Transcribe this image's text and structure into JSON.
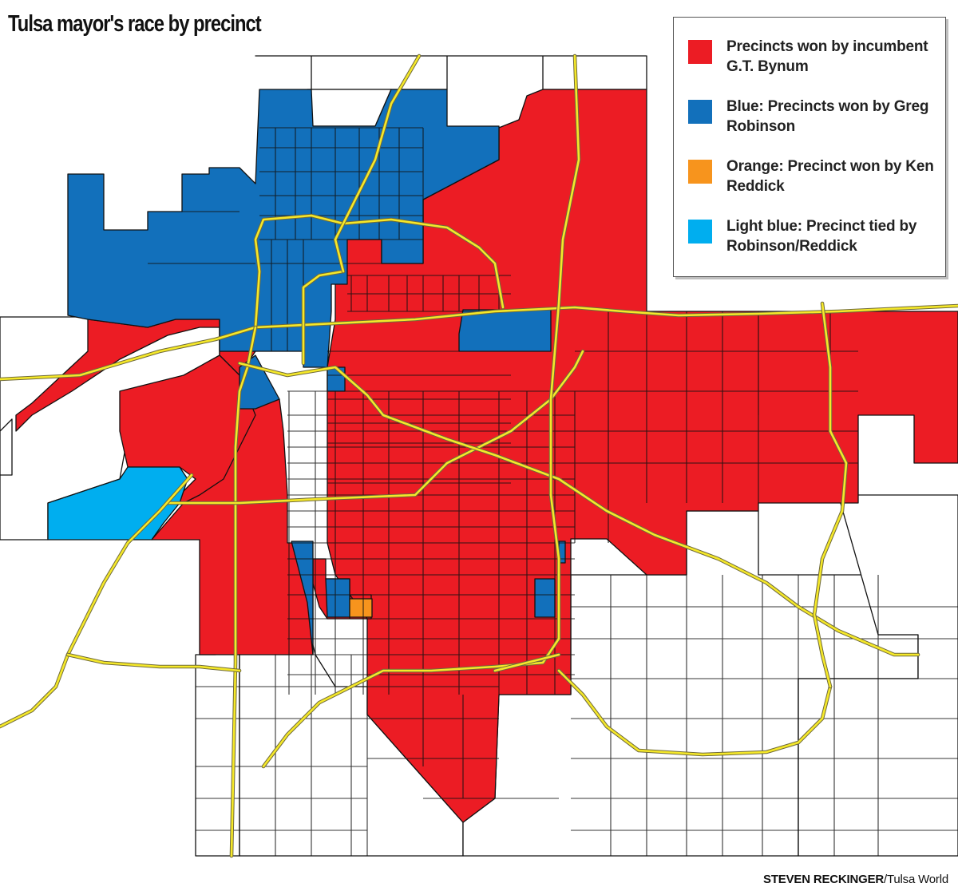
{
  "title": "Tulsa mayor's race by precinct",
  "legend": [
    {
      "label": "Precincts won by incumbent G.T. Bynum",
      "color": "#ec1c24"
    },
    {
      "label": "Blue: Precincts won by Greg Robinson",
      "color": "#1270bb"
    },
    {
      "label": "Orange: Precinct won by Ken Reddick",
      "color": "#f7941d"
    },
    {
      "label": "Light blue: Precinct tied by Robinson/Reddick",
      "color": "#00aeef"
    }
  ],
  "credit": {
    "author": "STEVEN RECKINGER",
    "publication": "/Tulsa World"
  },
  "colors": {
    "highway": "#f5e829",
    "highway_edge": "#6f6a3a",
    "boundary": "#111111",
    "no_data": "#ffffff"
  }
}
